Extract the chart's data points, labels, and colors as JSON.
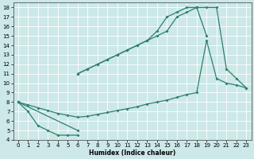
{
  "xlabel": "Humidex (Indice chaleur)",
  "line_color": "#2d7f6e",
  "bg_color": "#cce8e8",
  "grid_color": "#ffffff",
  "xlim": [
    -0.5,
    23.5
  ],
  "ylim": [
    4,
    18.5
  ],
  "xticks": [
    0,
    1,
    2,
    3,
    4,
    5,
    6,
    7,
    8,
    9,
    10,
    11,
    12,
    13,
    14,
    15,
    16,
    17,
    18,
    19,
    20,
    21,
    22,
    23
  ],
  "yticks": [
    4,
    5,
    6,
    7,
    8,
    9,
    10,
    11,
    12,
    13,
    14,
    15,
    16,
    17,
    18
  ],
  "line1": {
    "x": [
      0,
      1,
      2,
      3,
      4,
      5,
      6
    ],
    "y": [
      8,
      7,
      5.5,
      5,
      4.5,
      4.5,
      4.5
    ]
  },
  "line2": {
    "x": [
      0,
      6,
      6,
      7,
      8,
      9,
      10,
      11,
      12,
      13,
      14,
      15,
      16,
      17,
      18
    ],
    "y": [
      8,
      5,
      11,
      11.5,
      12,
      12.5,
      13,
      13.5,
      14,
      14.5,
      15,
      15.5,
      17,
      17.5,
      18
    ],
    "break_at": 1
  },
  "line3": {
    "x": [
      6,
      7,
      8,
      9,
      10,
      11,
      12,
      13,
      14,
      15,
      16,
      17,
      18,
      19,
      20,
      21,
      22,
      23
    ],
    "y": [
      11,
      11.5,
      12,
      12.5,
      13,
      13.5,
      14,
      14.5,
      15.5,
      17,
      17.5,
      18,
      18,
      18,
      18,
      11.5,
      10.5,
      9.5
    ]
  },
  "line4": {
    "x": [
      0,
      1,
      2,
      3,
      4,
      5,
      6,
      7,
      8,
      9,
      10,
      11,
      12,
      13,
      14,
      15,
      16,
      17,
      18,
      19,
      20,
      21,
      22,
      23
    ],
    "y": [
      8,
      7.7,
      7.4,
      7.1,
      6.8,
      6.6,
      6.4,
      6.5,
      6.7,
      6.9,
      7.1,
      7.3,
      7.5,
      7.8,
      8.0,
      8.2,
      8.5,
      8.8,
      9.0,
      14.5,
      10.5,
      10.0,
      9.8,
      9.5
    ]
  },
  "line5": {
    "x": [
      18,
      19
    ],
    "y": [
      18,
      15
    ]
  }
}
